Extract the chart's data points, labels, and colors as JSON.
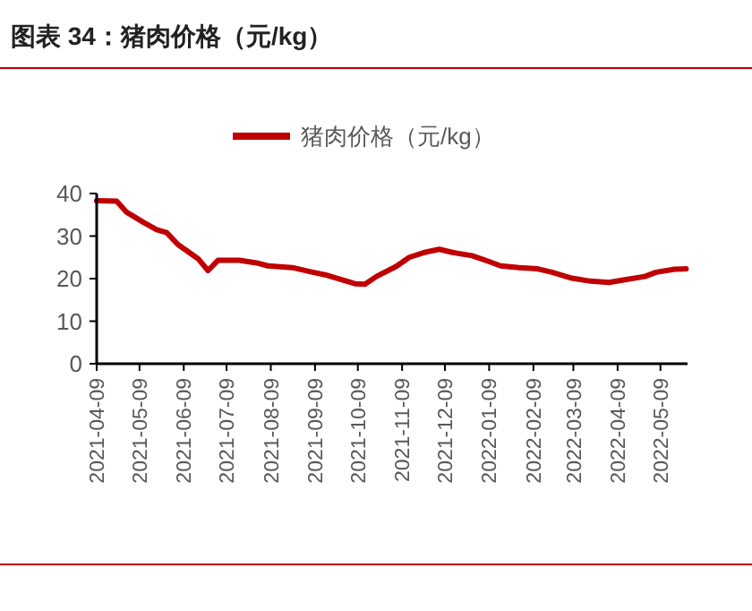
{
  "chart_data": {
    "type": "line",
    "title": "图表 34：猪肉价格（元/kg）",
    "legend": "top",
    "grid": false,
    "marker": "none",
    "line_style": "solid",
    "xlim": [
      "2021-04-09",
      "2022-05-28"
    ],
    "xticks": [
      "2021-04-09",
      "2021-05-09",
      "2021-06-09",
      "2021-07-09",
      "2021-08-09",
      "2021-09-09",
      "2021-10-09",
      "2021-11-09",
      "2021-12-09",
      "2022-01-09",
      "2022-02-09",
      "2022-03-09",
      "2022-04-09",
      "2022-05-09"
    ],
    "ylim": [
      0,
      40
    ],
    "yticks": [
      0,
      10,
      20,
      30,
      40
    ],
    "x": [
      "2021-04-09",
      "2021-04-23",
      "2021-04-30",
      "2021-05-12",
      "2021-05-21",
      "2021-05-28",
      "2021-06-05",
      "2021-06-13",
      "2021-06-19",
      "2021-06-26",
      "2021-07-03",
      "2021-07-18",
      "2021-07-30",
      "2021-08-07",
      "2021-08-24",
      "2021-09-06",
      "2021-09-16",
      "2021-09-27",
      "2021-10-07",
      "2021-10-14",
      "2021-10-22",
      "2021-11-05",
      "2021-11-14",
      "2021-11-24",
      "2021-12-05",
      "2021-12-15",
      "2021-12-28",
      "2022-01-09",
      "2022-01-17",
      "2022-01-30",
      "2022-02-12",
      "2022-02-22",
      "2022-03-08",
      "2022-03-21",
      "2022-04-03",
      "2022-04-15",
      "2022-04-28",
      "2022-05-06",
      "2022-05-19",
      "2022-05-27"
    ],
    "series": [
      {
        "name": "猪肉价格（元/kg）",
        "color": "#c00000",
        "values": [
          38.3,
          38.2,
          35.6,
          33.2,
          31.5,
          30.8,
          28,
          26.1,
          24.7,
          21.9,
          24.3,
          24.3,
          23.7,
          23,
          22.6,
          21.6,
          20.9,
          19.8,
          18.8,
          18.7,
          20.5,
          22.9,
          25,
          26.1,
          26.9,
          26.1,
          25.4,
          24,
          23,
          22.6,
          22.3,
          21.5,
          20.1,
          19.4,
          19.1,
          19.8,
          20.5,
          21.5,
          22.2,
          22.3
        ]
      }
    ]
  }
}
